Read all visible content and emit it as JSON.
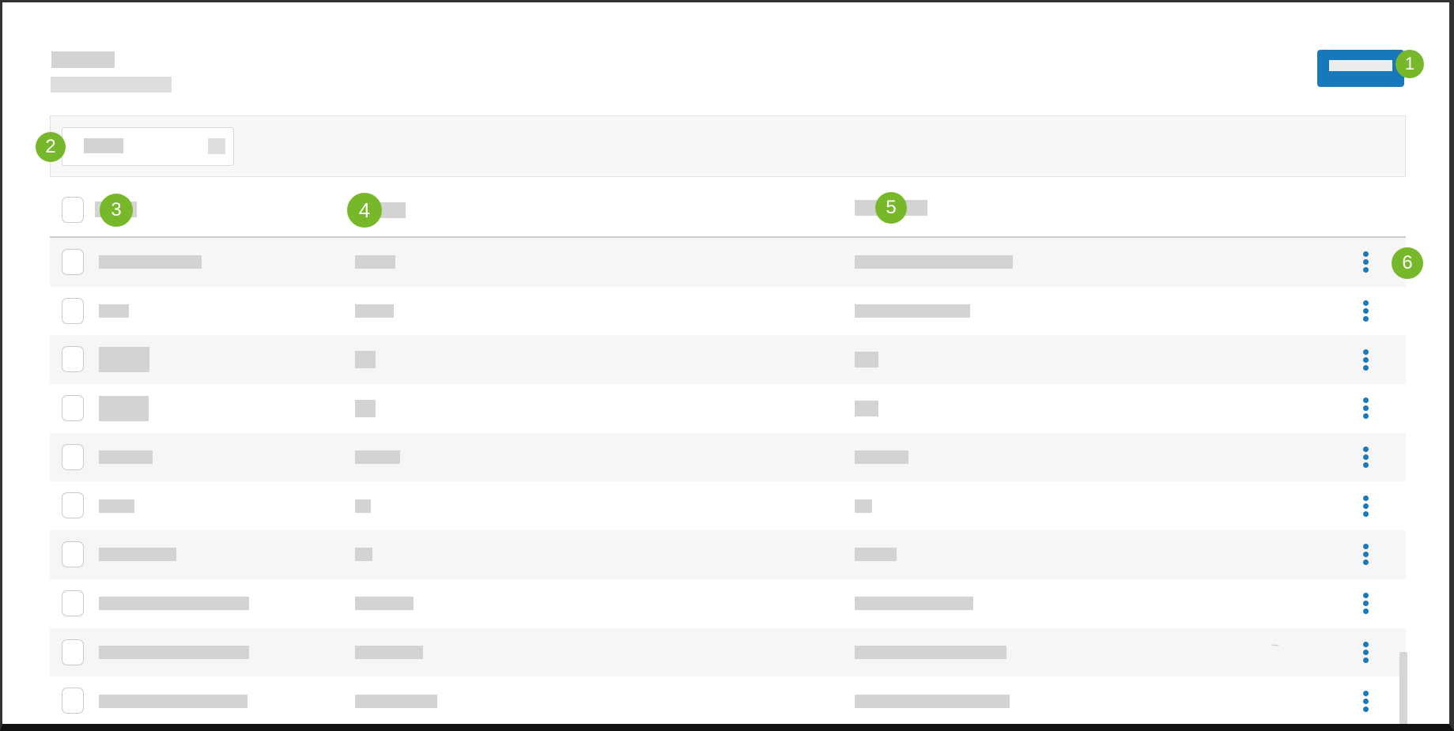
{
  "colors": {
    "accent_blue": "#1779ba",
    "callout_green": "#76b82a",
    "kebab_blue": "#1a79bc",
    "skeleton_gray": "#d3d3d3",
    "row_stripe_bg": "#f6f6f6",
    "filter_bar_bg": "#f7f7f7"
  },
  "callouts": {
    "primary_button": "1",
    "search_filter": "2",
    "column_1": "3",
    "column_2": "4",
    "column_3": "5",
    "row_actions": "6"
  },
  "stray_mark": "~",
  "table": {
    "row_count": 10,
    "rows": [
      {
        "stripe": true,
        "c1w": 130,
        "c1h": 17,
        "c2w": 51,
        "c2h": 17,
        "c3w": 200,
        "c3h": 17
      },
      {
        "stripe": false,
        "c1w": 38,
        "c1h": 17,
        "c2w": 49,
        "c2h": 17,
        "c3w": 146,
        "c3h": 17
      },
      {
        "stripe": true,
        "c1w": 64,
        "c1h": 32,
        "c2w": 26,
        "c2h": 22,
        "c3w": 30,
        "c3h": 20
      },
      {
        "stripe": false,
        "c1w": 63,
        "c1h": 32,
        "c2w": 26,
        "c2h": 22,
        "c3w": 30,
        "c3h": 20
      },
      {
        "stripe": true,
        "c1w": 68,
        "c1h": 17,
        "c2w": 57,
        "c2h": 17,
        "c3w": 68,
        "c3h": 17
      },
      {
        "stripe": false,
        "c1w": 45,
        "c1h": 17,
        "c2w": 20,
        "c2h": 17,
        "c3w": 22,
        "c3h": 17
      },
      {
        "stripe": true,
        "c1w": 98,
        "c1h": 17,
        "c2w": 22,
        "c2h": 17,
        "c3w": 53,
        "c3h": 17
      },
      {
        "stripe": false,
        "c1w": 190,
        "c1h": 17,
        "c2w": 74,
        "c2h": 17,
        "c3w": 150,
        "c3h": 17
      },
      {
        "stripe": true,
        "c1w": 190,
        "c1h": 17,
        "c2w": 86,
        "c2h": 17,
        "c3w": 192,
        "c3h": 17
      },
      {
        "stripe": false,
        "c1w": 188,
        "c1h": 17,
        "c2w": 104,
        "c2h": 17,
        "c3w": 196,
        "c3h": 17
      }
    ]
  }
}
